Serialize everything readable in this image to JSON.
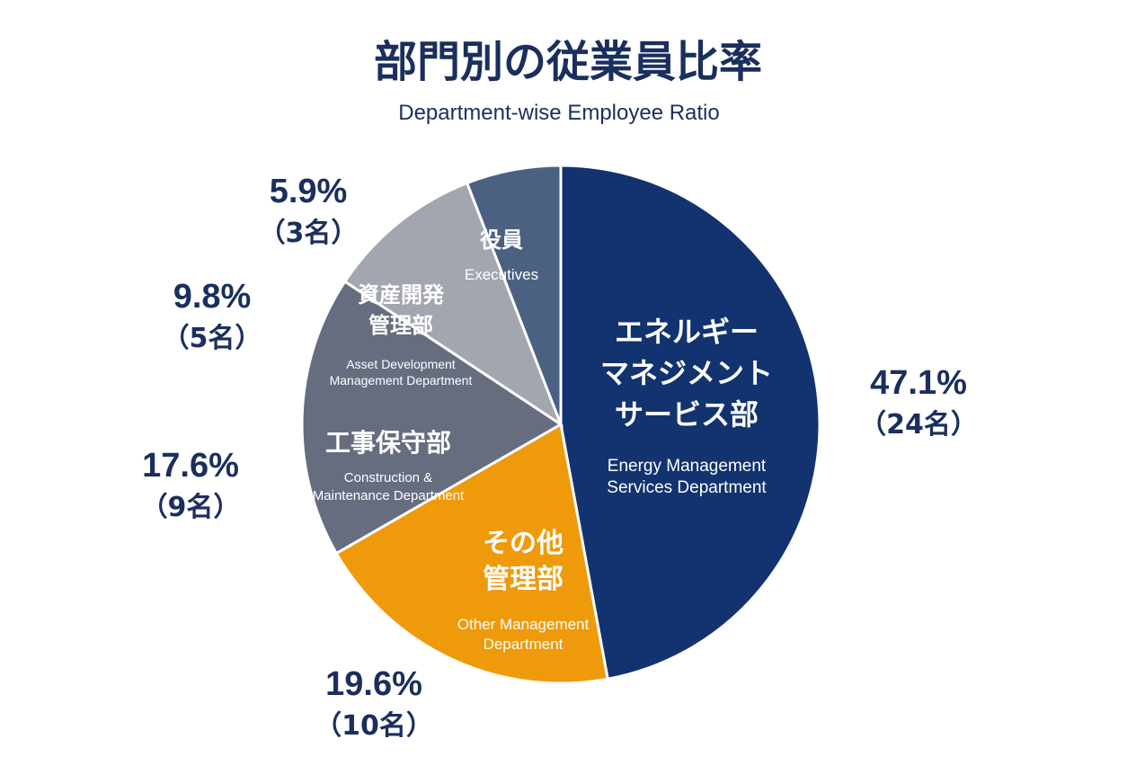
{
  "chart_data": {
    "type": "pie",
    "title": "部門別の従業員比率",
    "subtitle": "Department-wise Employee Ratio",
    "slices": [
      {
        "name_ja": [
          "エネルギー",
          "マネジメント",
          "サービス部"
        ],
        "name_en": [
          "Energy Management",
          "Services Department"
        ],
        "value": 47.1,
        "percent_label": "47.1%",
        "count_label": "（24名）",
        "color": "#12336f"
      },
      {
        "name_ja": [
          "その他",
          "管理部"
        ],
        "name_en": [
          "Other Management",
          "Department"
        ],
        "value": 19.6,
        "percent_label": "19.6%",
        "count_label": "（10名）",
        "color": "#ef9a0b"
      },
      {
        "name_ja": [
          "工事保守部"
        ],
        "name_en": [
          "Construction &",
          "Maintenance Department"
        ],
        "value": 17.6,
        "percent_label": "17.6%",
        "count_label": "（9名）",
        "color": "#666d7f"
      },
      {
        "name_ja": [
          "資産開発",
          "管理部"
        ],
        "name_en": [
          "Asset Development",
          "Management Department"
        ],
        "value": 9.8,
        "percent_label": "9.8%",
        "count_label": "（5名）",
        "color": "#a2a6ae"
      },
      {
        "name_ja": [
          "役員"
        ],
        "name_en": [
          "Executives"
        ],
        "value": 5.9,
        "percent_label": "5.9%",
        "count_label": "（3名）",
        "color": "#4b6182"
      }
    ]
  }
}
